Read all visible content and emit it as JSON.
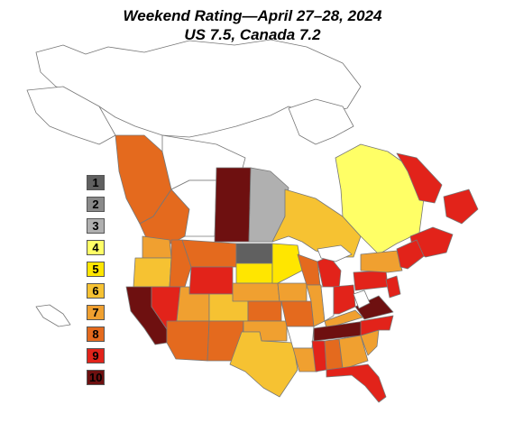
{
  "title": "Weekend Rating—April 27–28, 2024",
  "subtitle": "US 7.5, Canada 7.2",
  "legend": [
    {
      "label": "1",
      "color": "#606060"
    },
    {
      "label": "2",
      "color": "#8a8a8a"
    },
    {
      "label": "3",
      "color": "#b0b0b0"
    },
    {
      "label": "4",
      "color": "#ffff66"
    },
    {
      "label": "5",
      "color": "#ffe600"
    },
    {
      "label": "6",
      "color": "#f6c232"
    },
    {
      "label": "7",
      "color": "#f0a030"
    },
    {
      "label": "8",
      "color": "#e46a1e"
    },
    {
      "label": "9",
      "color": "#e2231a"
    },
    {
      "label": "10",
      "color": "#6e1010"
    }
  ],
  "colors": {
    "border": "#666666",
    "background": "#ffffff",
    "unrated": "#ffffff"
  }
}
